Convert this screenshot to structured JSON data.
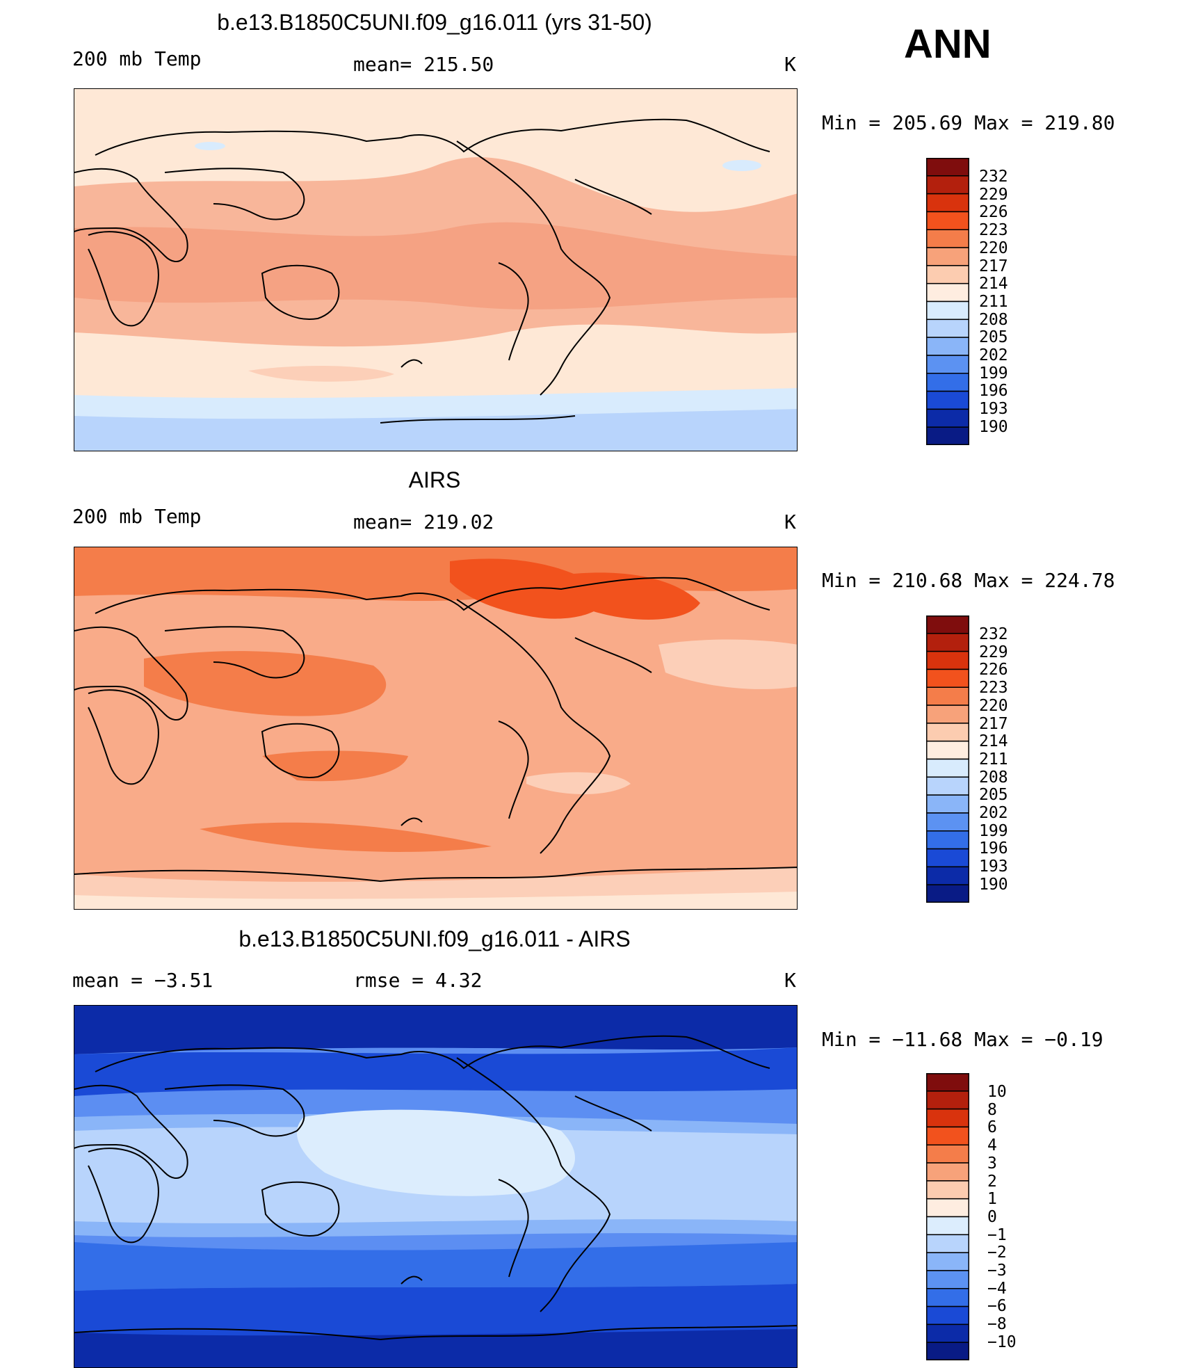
{
  "season": "ANN",
  "panels": [
    {
      "id": "model",
      "title": "b.e13.B1850C5UNI.f09_g16.011 (yrs 31-50)",
      "left_label": "200 mb Temp",
      "center_label": "mean=  215.50",
      "units": "K",
      "minmax": "Min  =  205.69  Max  =  219.80",
      "colorbar": {
        "labels": [
          "232",
          "229",
          "226",
          "223",
          "220",
          "217",
          "214",
          "211",
          "208",
          "205",
          "202",
          "199",
          "196",
          "193",
          "190"
        ],
        "colors": [
          "#7f0d0d",
          "#b3200d",
          "#d9330d",
          "#f2521d",
          "#f47d4a",
          "#f7a27a",
          "#fcccb0",
          "#feede0",
          "#d8ebfd",
          "#b8d4fc",
          "#8ab5f8",
          "#5c92f2",
          "#336ee8",
          "#1a4ad6",
          "#0c2ba8",
          "#091b85"
        ]
      },
      "fields": {
        "background": "#fee8d6",
        "bands": [
          "#f8b69a",
          "#f5a283",
          "#fccfb8",
          "#fee8d6"
        ],
        "polar": [
          "#b8d4fc",
          "#d8ebfd"
        ]
      }
    },
    {
      "id": "obs",
      "title": "AIRS",
      "left_label": "200 mb Temp",
      "center_label": "mean=  219.02",
      "units": "K",
      "minmax": "Min  =  210.68  Max  =  224.78",
      "colorbar": {
        "labels": [
          "232",
          "229",
          "226",
          "223",
          "220",
          "217",
          "214",
          "211",
          "208",
          "205",
          "202",
          "199",
          "196",
          "193",
          "190"
        ],
        "colors": [
          "#7f0d0d",
          "#b3200d",
          "#d9330d",
          "#f2521d",
          "#f47d4a",
          "#f7a27a",
          "#fcccb0",
          "#feede0",
          "#d8ebfd",
          "#b8d4fc",
          "#8ab5f8",
          "#5c92f2",
          "#336ee8",
          "#1a4ad6",
          "#0c2ba8",
          "#091b85"
        ]
      },
      "fields": {
        "background": "#f9ab89",
        "bands": [
          "#f47d4a",
          "#f2521d",
          "#fccfb8",
          "#fee8d6"
        ],
        "polar": [
          "#fccfb8",
          "#fee8d6"
        ]
      }
    },
    {
      "id": "diff",
      "title": "b.e13.B1850C5UNI.f09_g16.011 - AIRS",
      "left_label": "mean  =    −3.51",
      "center_label": "rmse  =     4.32",
      "units": "K",
      "minmax": "Min  =  −11.68  Max  =    −0.19",
      "colorbar": {
        "labels": [
          "10",
          "8",
          "6",
          "4",
          "3",
          "2",
          "1",
          "0",
          "−1",
          "−2",
          "−3",
          "−4",
          "−6",
          "−8",
          "−10"
        ],
        "colors": [
          "#7f0d0d",
          "#b3200d",
          "#d9330d",
          "#f2521d",
          "#f47d4a",
          "#f7a27a",
          "#fcccb0",
          "#feede0",
          "#dcedfd",
          "#b8d4fc",
          "#8ab5f8",
          "#5c92f2",
          "#336ee8",
          "#1a4ad6",
          "#0c2ba8",
          "#091b85"
        ]
      },
      "fields": {
        "background": "#5c8ef2",
        "bands": [
          "#b8d4fc",
          "#dcedfd",
          "#8ab5f8",
          "#336ee8",
          "#1a4ad6",
          "#0c2ba8"
        ],
        "polar": [
          "#1a4ad6",
          "#091b85"
        ]
      }
    }
  ]
}
